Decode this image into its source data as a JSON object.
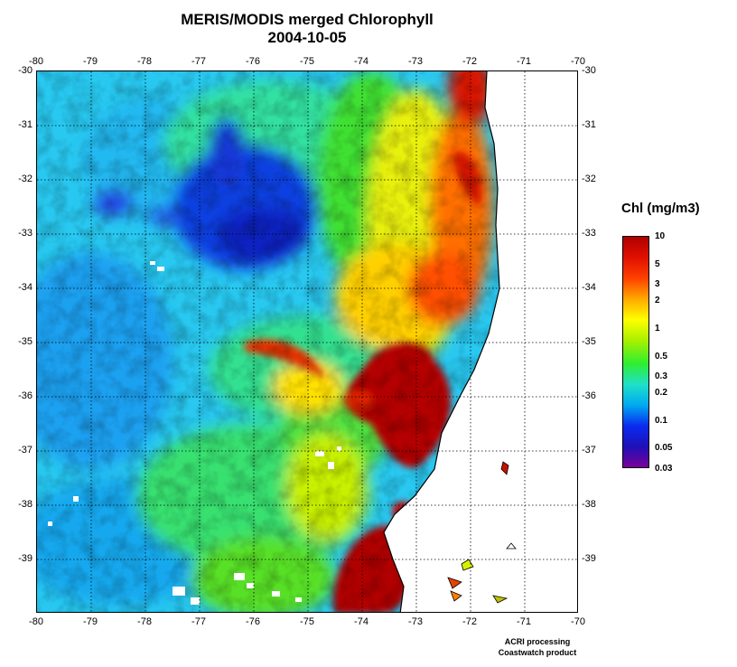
{
  "title": "MERIS/MODIS merged Chlorophyll",
  "date": "2004-10-05",
  "map": {
    "lon_range": [
      -80,
      -70
    ],
    "lat_range": [
      -40,
      -30
    ],
    "lon_ticks": [
      "-80",
      "-79",
      "-78",
      "-77",
      "-76",
      "-75",
      "-74",
      "-73",
      "-72",
      "-71",
      "-70"
    ],
    "lat_ticks": [
      "-30",
      "-31",
      "-32",
      "-33",
      "-34",
      "-35",
      "-36",
      "-37",
      "-38",
      "-39"
    ],
    "grid": "dotted",
    "land_color": "#ffffff",
    "coastline_color": "#000000"
  },
  "legend": {
    "title": "Chl (mg/m3)",
    "scale": "log",
    "labels": [
      "10",
      "5",
      "3",
      "2",
      "1",
      "0.5",
      "0.3",
      "0.2",
      "0.1",
      "0.05",
      "0.03"
    ],
    "colors": [
      "#7a0099",
      "#1e10b8",
      "#0a2cf0",
      "#00aaf0",
      "#20e0c8",
      "#30ee30",
      "#a8f000",
      "#ffff00",
      "#ffa800",
      "#ff4000",
      "#e01000",
      "#b00000"
    ]
  },
  "footer": {
    "line1": "ACRI processing",
    "line2": "Coastwatch product"
  }
}
